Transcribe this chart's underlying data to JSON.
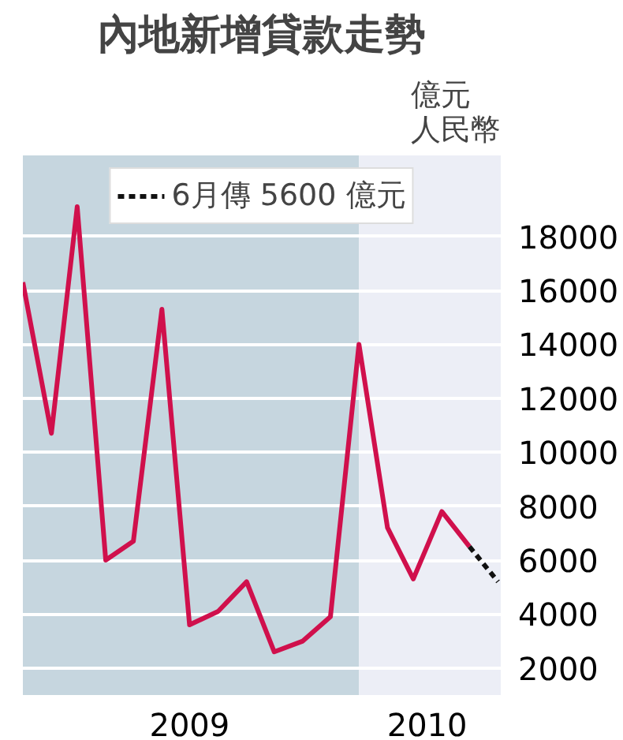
{
  "chart_data": {
    "type": "line",
    "title": "內地新增貸款走勢",
    "ylabel": "億元人民幣",
    "x": [
      "2009-01",
      "2009-02",
      "2009-03",
      "2009-04",
      "2009-05",
      "2009-06",
      "2009-07",
      "2009-08",
      "2009-09",
      "2009-10",
      "2009-11",
      "2009-12",
      "2010-01",
      "2010-02",
      "2010-03",
      "2010-04",
      "2010-05",
      "2010-06"
    ],
    "series": [
      {
        "color": "#d0104c",
        "line_style": "solid",
        "values": [
          16300,
          10700,
          19100,
          6000,
          6700,
          15300,
          3600,
          4100,
          5200,
          2600,
          3000,
          3900,
          14000,
          7200,
          5300,
          7800,
          6500,
          null
        ]
      },
      {
        "name": "6月傳 5600 億元",
        "color": "#111111",
        "line_style": "dashed",
        "values": [
          null,
          null,
          null,
          null,
          null,
          null,
          null,
          null,
          null,
          null,
          null,
          null,
          null,
          null,
          null,
          null,
          6500,
          5200
        ]
      }
    ],
    "xlim": [
      "2009-01-01",
      "2010-06-04"
    ],
    "xticks": [
      {
        "value": "2009-07-01",
        "label": "2009"
      },
      {
        "value": "2010-03-16",
        "label": "2010"
      }
    ],
    "ylim": [
      1000,
      21000
    ],
    "yticks": [
      2000,
      4000,
      6000,
      8000,
      10000,
      12000,
      14000,
      16000,
      18000
    ],
    "bands": [
      {
        "axis": "x",
        "from": "2009-01-01",
        "to": "2010-01-01",
        "label": null,
        "color": "#c6d6df"
      },
      {
        "axis": "x",
        "from": "2010-01-01",
        "to": "2010-06-04",
        "label": null,
        "color": "#eceef6"
      }
    ],
    "grid": "y",
    "legend": "top",
    "marker": "none"
  }
}
